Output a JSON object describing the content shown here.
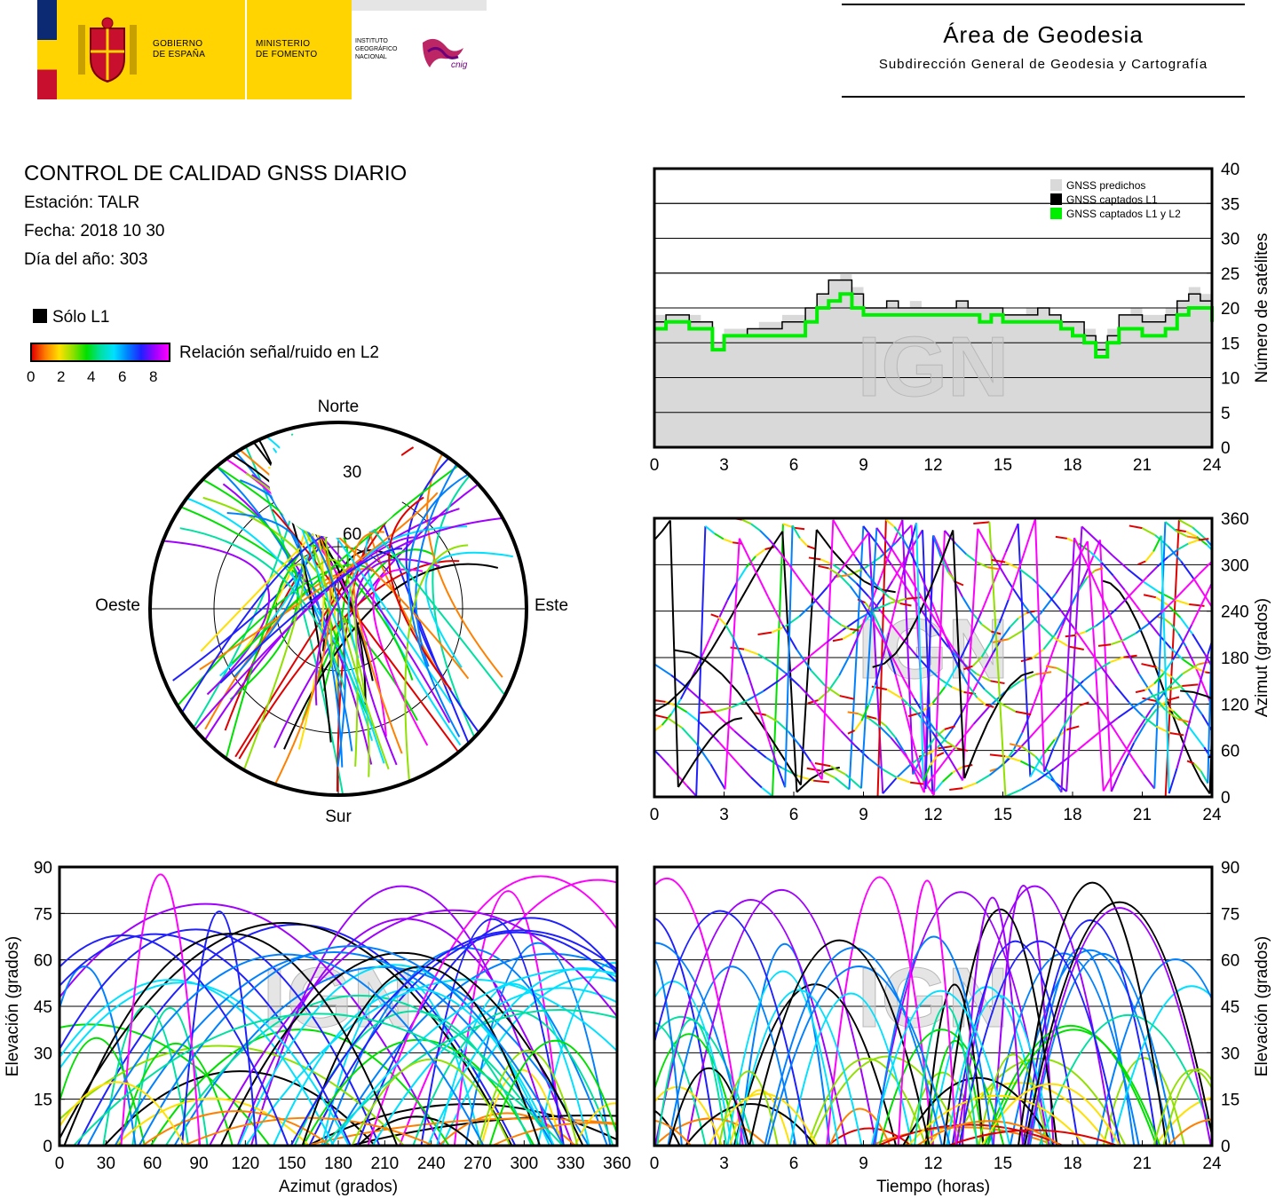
{
  "header": {
    "gov_line1": "GOBIERNO",
    "gov_line2": "DE ESPAÑA",
    "min_line1": "MINISTERIO",
    "min_line2": "DE FOMENTO",
    "ign_line1": "INSTITUTO",
    "ign_line2": "GEOGRÁFICO",
    "ign_line3": "NACIONAL",
    "cnig_logo": "cnig",
    "area_title": "Área de Geodesia",
    "area_subtitle": "Subdirección General de Geodesia y Cartografía"
  },
  "info": {
    "title": "CONTROL DE CALIDAD GNSS DIARIO",
    "station": "Estación: TALR",
    "date": "Fecha: 2018 10 30",
    "doy": "Día del año: 303",
    "l1_only": "Sólo L1",
    "snr_label": "Relación señal/ruido en L2",
    "snr_ticks": [
      "0",
      "2",
      "4",
      "6",
      "8"
    ]
  },
  "colors": {
    "predicted": "#d9d9d9",
    "l1": "#000000",
    "l1l2": "#00ee00",
    "snr_scale": [
      "#e00000",
      "#ff8000",
      "#ffe000",
      "#90e000",
      "#00e000",
      "#00e0a0",
      "#00e0ff",
      "#0080ff",
      "#2020ff",
      "#a000ff",
      "#ff00ff"
    ]
  },
  "watermark": "IGN",
  "chart_data": [
    {
      "type": "polar",
      "id": "skyplot",
      "labels": {
        "north": "Norte",
        "south": "Sur",
        "east": "Este",
        "west": "Oeste"
      },
      "rings": [
        "30",
        "60"
      ],
      "colorbar": "SNR L2"
    },
    {
      "type": "area",
      "id": "satellites",
      "ylabel": "Número de satélites",
      "xlim": [
        0,
        24
      ],
      "ylim": [
        0,
        40
      ],
      "xticks": [
        "0",
        "3",
        "6",
        "9",
        "12",
        "15",
        "18",
        "21",
        "24"
      ],
      "yticks": [
        "0",
        "5",
        "10",
        "15",
        "20",
        "25",
        "30",
        "35",
        "40"
      ],
      "legend": [
        "GNSS predichos",
        "GNSS captados L1",
        "GNSS captados L1 y L2"
      ],
      "legend_position": "top-right",
      "x": [
        0,
        0.5,
        1,
        1.5,
        2,
        2.5,
        3,
        3.5,
        4,
        4.5,
        5,
        5.5,
        6,
        6.5,
        7,
        7.5,
        8,
        8.5,
        9,
        9.5,
        10,
        10.5,
        11,
        11.5,
        12,
        12.5,
        13,
        13.5,
        14,
        14.5,
        15,
        15.5,
        16,
        16.5,
        17,
        17.5,
        18,
        18.5,
        19,
        19.5,
        20,
        20.5,
        21,
        21.5,
        22,
        22.5,
        23,
        23.5,
        24
      ],
      "series": [
        {
          "name": "GNSS predichos",
          "values": [
            19,
            19,
            19,
            19,
            18,
            15,
            17,
            17,
            17,
            18,
            18,
            19,
            19,
            20,
            22,
            24,
            25,
            23,
            20,
            20,
            21,
            20,
            21,
            20,
            20,
            20,
            21,
            20,
            20,
            20,
            19,
            19,
            20,
            20,
            19,
            18,
            18,
            17,
            15,
            17,
            19,
            20,
            19,
            19,
            20,
            21,
            23,
            22,
            20
          ]
        },
        {
          "name": "GNSS captados L1",
          "values": [
            18,
            19,
            19,
            18,
            18,
            14,
            16,
            16,
            17,
            17,
            17,
            18,
            18,
            20,
            22,
            24,
            24,
            22,
            20,
            20,
            21,
            20,
            20,
            20,
            20,
            20,
            21,
            20,
            20,
            20,
            19,
            19,
            19,
            20,
            19,
            18,
            18,
            16,
            14,
            16,
            19,
            19,
            18,
            18,
            19,
            21,
            22,
            21,
            19
          ]
        },
        {
          "name": "GNSS captados L1 y L2",
          "values": [
            17,
            18,
            18,
            17,
            17,
            14,
            16,
            16,
            16,
            16,
            16,
            16,
            16,
            18,
            20,
            21,
            22,
            20,
            19,
            19,
            19,
            19,
            19,
            19,
            19,
            19,
            19,
            19,
            18,
            19,
            18,
            18,
            18,
            18,
            18,
            17,
            16,
            15,
            13,
            15,
            17,
            17,
            16,
            16,
            17,
            19,
            20,
            20,
            18
          ]
        }
      ]
    },
    {
      "type": "scatter",
      "id": "azimuth-time",
      "ylabel": "Azimut (grados)",
      "xlim": [
        0,
        24
      ],
      "ylim": [
        0,
        360
      ],
      "xticks": [
        "0",
        "3",
        "6",
        "9",
        "12",
        "15",
        "18",
        "21",
        "24"
      ],
      "yticks": [
        "0",
        "60",
        "120",
        "180",
        "240",
        "300",
        "360"
      ]
    },
    {
      "type": "line",
      "id": "elevation-azimuth",
      "xlabel": "Azimut (grados)",
      "ylabel": "Elevación (grados)",
      "xlim": [
        0,
        360
      ],
      "ylim": [
        0,
        90
      ],
      "xticks": [
        "0",
        "30",
        "60",
        "90",
        "120",
        "150",
        "180",
        "210",
        "240",
        "270",
        "300",
        "330",
        "360"
      ],
      "yticks": [
        "0",
        "15",
        "30",
        "45",
        "60",
        "75",
        "90"
      ]
    },
    {
      "type": "line",
      "id": "elevation-time",
      "xlabel": "Tiempo (horas)",
      "ylabel": "Elevación (grados)",
      "xlim": [
        0,
        24
      ],
      "ylim": [
        0,
        90
      ],
      "xticks": [
        "0",
        "3",
        "6",
        "9",
        "12",
        "15",
        "18",
        "21",
        "24"
      ],
      "yticks": [
        "0",
        "15",
        "30",
        "45",
        "60",
        "75",
        "90"
      ]
    }
  ]
}
